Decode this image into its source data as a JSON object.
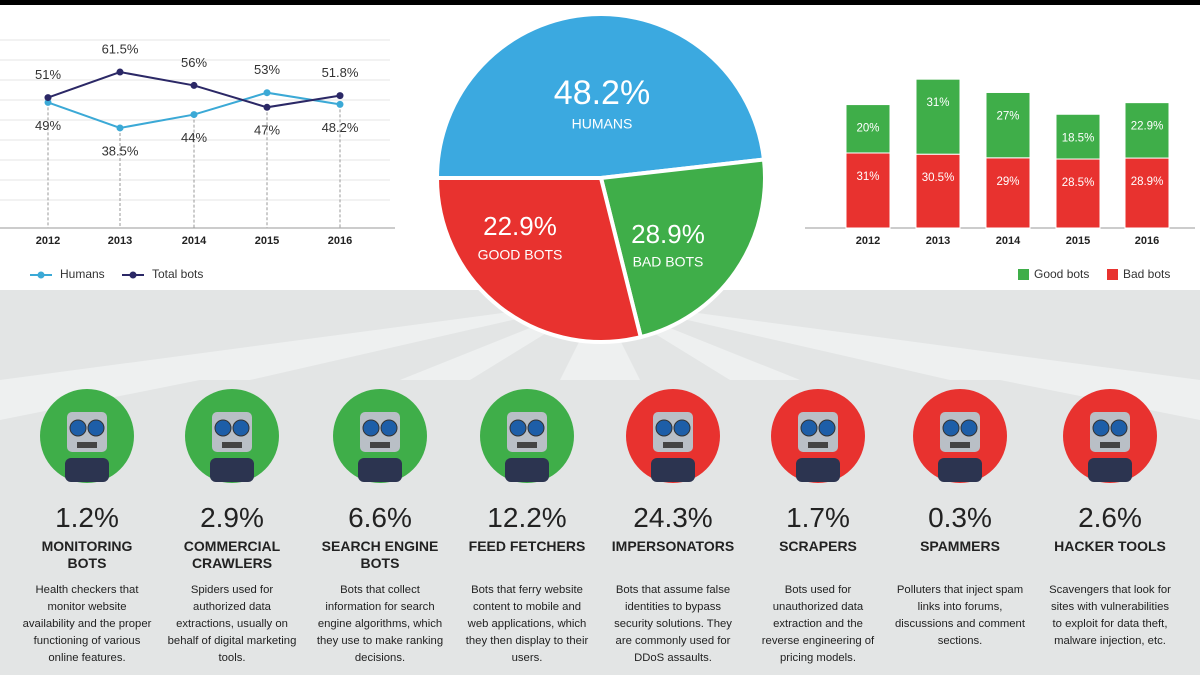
{
  "chart_data": [
    {
      "type": "line",
      "categories": [
        "2012",
        "2013",
        "2014",
        "2015",
        "2016"
      ],
      "series": [
        {
          "name": "Humans",
          "color": "#3ba9d6",
          "values": [
            49,
            38.5,
            44,
            53,
            48.2
          ],
          "value_labels": [
            "49%",
            "38.5%",
            "44%",
            "53%",
            "48.2%"
          ]
        },
        {
          "name": "Total bots",
          "color": "#2b2866",
          "values": [
            51,
            61.5,
            56,
            47,
            51.8
          ],
          "value_labels": [
            "51%",
            "61.5%",
            "56%",
            "47%",
            "51.8%"
          ]
        }
      ]
    },
    {
      "type": "pie",
      "categories": [
        "HUMANS",
        "GOOD BOTS",
        "BAD BOTS"
      ],
      "values": [
        48.2,
        22.9,
        28.9
      ],
      "value_labels": [
        "48.2%",
        "22.9%",
        "28.9%"
      ],
      "colors": [
        "#3ba9e0",
        "#3fae49",
        "#e8322f"
      ]
    },
    {
      "type": "stacked-bar",
      "categories": [
        "2012",
        "2013",
        "2014",
        "2015",
        "2016"
      ],
      "series": [
        {
          "name": "Good bots",
          "color": "#3fae49",
          "values": [
            20,
            31,
            27,
            18.5,
            22.9
          ],
          "value_labels": [
            "20%",
            "31%",
            "27%",
            "18.5%",
            "22.9%"
          ]
        },
        {
          "name": "Bad bots",
          "color": "#e8322f",
          "values": [
            31,
            30.5,
            29,
            28.5,
            28.9
          ],
          "value_labels": [
            "31%",
            "30.5%",
            "29%",
            "28.5%",
            "28.9%"
          ]
        }
      ]
    }
  ],
  "bots": [
    {
      "share": "1.2%",
      "name": "MONITORING BOTS",
      "description": "Health checkers that monitor website availability and the proper functioning of various online features.",
      "kind": "good"
    },
    {
      "share": "2.9%",
      "name": "COMMERCIAL CRAWLERS",
      "description": "Spiders used for authorized data extractions, usually on behalf of digital marketing tools.",
      "kind": "good"
    },
    {
      "share": "6.6%",
      "name": "SEARCH ENGINE BOTS",
      "description": "Bots that collect information for search engine algorithms, which they use to make ranking decisions.",
      "kind": "good"
    },
    {
      "share": "12.2%",
      "name": "FEED FETCHERS",
      "description": "Bots that ferry website content to mobile and web applications, which they then display to their users.",
      "kind": "good"
    },
    {
      "share": "24.3%",
      "name": "IMPERSONATORS",
      "description": "Bots that assume false identities to bypass security solutions. They are commonly used for DDoS assaults.",
      "kind": "bad"
    },
    {
      "share": "1.7%",
      "name": "SCRAPERS",
      "description": "Bots used for unauthorized data extraction and the reverse engineering of pricing models.",
      "kind": "bad"
    },
    {
      "share": "0.3%",
      "name": "SPAMMERS",
      "description": "Polluters that inject spam links into forums, discussions and comment sections.",
      "kind": "bad"
    },
    {
      "share": "2.6%",
      "name": "HACKER TOOLS",
      "description": "Scavengers that look for sites with vulnerabilities to exploit for data theft, malware injection, etc.",
      "kind": "bad"
    }
  ]
}
